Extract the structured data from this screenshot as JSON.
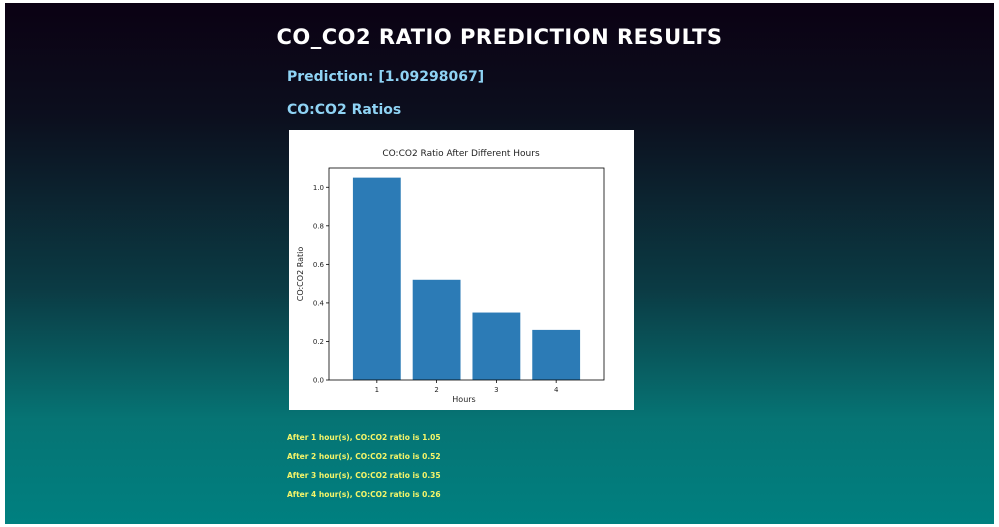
{
  "page": {
    "title": "CO_CO2 RATIO PREDICTION RESULTS",
    "prediction_text": "Prediction: [1.09298067]",
    "ratios_heading": "CO:CO2 Ratios"
  },
  "results": [
    "After 1 hour(s), CO:CO2 ratio is 1.05",
    "After 2 hour(s), CO:CO2 ratio is 0.52",
    "After 3 hour(s), CO:CO2 ratio is 0.35",
    "After 4 hour(s), CO:CO2 ratio is 0.26"
  ],
  "colors": {
    "bar": "#2c7bb6",
    "heading_text": "#8fd3f4",
    "result_text": "#f5f569"
  },
  "chart_data": {
    "type": "bar",
    "title": "CO:CO2 Ratio After Different Hours",
    "xlabel": "Hours",
    "ylabel": "CO:CO2 Ratio",
    "categories": [
      "1",
      "2",
      "3",
      "4"
    ],
    "values": [
      1.05,
      0.52,
      0.35,
      0.26
    ],
    "ylim": [
      0,
      1.1
    ],
    "yticks": [
      "0.0",
      "0.2",
      "0.4",
      "0.6",
      "0.8",
      "1.0"
    ],
    "grid": false,
    "legend": "none"
  }
}
